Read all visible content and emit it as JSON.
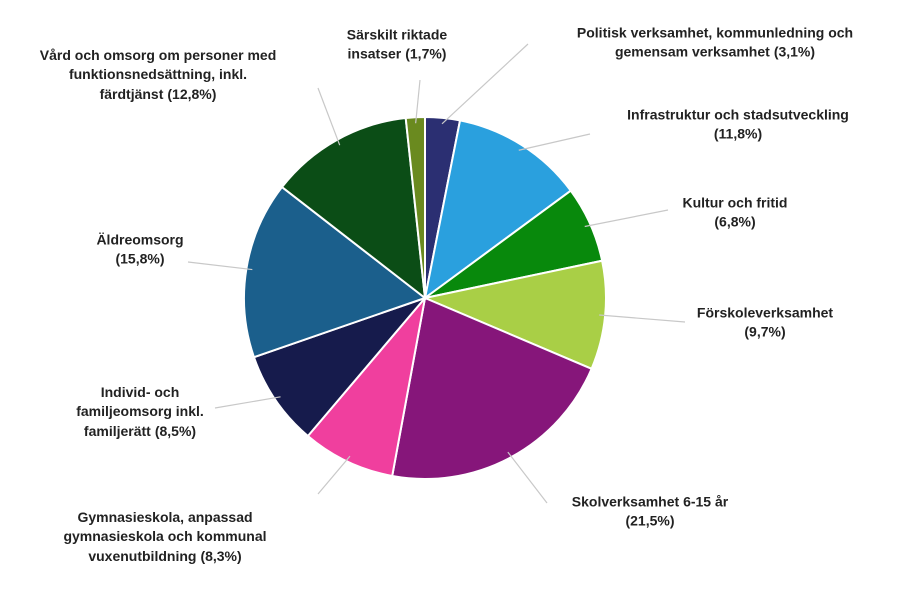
{
  "chart_data": {
    "type": "pie",
    "categories": [
      "Politisk verksamhet, kommunledning och gemensam verksamhet",
      "Infrastruktur och stadsutveckling",
      "Kultur och fritid",
      "Förskoleverksamhet",
      "Skolverksamhet 6-15 år",
      "Gymnasieskola, anpassad gymnasieskola och kommunal vuxenutbildning",
      "Individ- och familjeomsorg inkl. familjerätt",
      "Äldreomsorg",
      "Vård och omsorg om personer med funktionsnedsättning, inkl. färdtjänst",
      "Särskilt riktade insatser"
    ],
    "values": [
      3.1,
      11.8,
      6.8,
      9.7,
      21.5,
      8.3,
      8.5,
      15.8,
      12.8,
      1.7
    ],
    "value_labels": [
      "(3,1%)",
      "(11,8%)",
      "(6,8%)",
      "(9,7%)",
      "(21,5%)",
      "(8,3%)",
      "(8,5%)",
      "(15,8%)",
      "(12,8%)",
      "(1,7%)"
    ],
    "colors": [
      "#2b2f72",
      "#2aa0de",
      "#08890c",
      "#a9cf46",
      "#86167a",
      "#f03f9e",
      "#161b4c",
      "#1b5f8c",
      "#0b4d16",
      "#6a8a1f"
    ]
  }
}
